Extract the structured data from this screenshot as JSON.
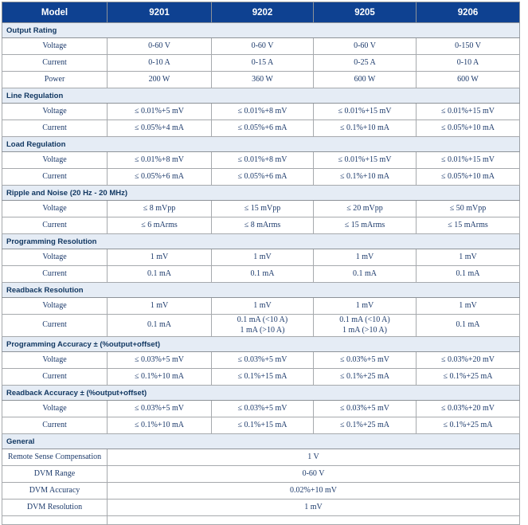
{
  "table": {
    "header": [
      "Model",
      "9201",
      "9202",
      "9205",
      "9206"
    ],
    "sections": [
      {
        "title": "Output Rating",
        "rows": [
          {
            "label": "Voltage",
            "values": [
              "0-60 V",
              "0-60 V",
              "0-60 V",
              "0-150 V"
            ]
          },
          {
            "label": "Current",
            "values": [
              "0-10 A",
              "0-15 A",
              "0-25 A",
              "0-10 A"
            ]
          },
          {
            "label": "Power",
            "values": [
              "200 W",
              "360 W",
              "600 W",
              "600 W"
            ]
          }
        ]
      },
      {
        "title": "Line Regulation",
        "rows": [
          {
            "label": "Voltage",
            "values": [
              "≤ 0.01%+5 mV",
              "≤ 0.01%+8 mV",
              "≤ 0.01%+15 mV",
              "≤ 0.01%+15 mV"
            ]
          },
          {
            "label": "Current",
            "values": [
              "≤ 0.05%+4 mA",
              "≤ 0.05%+6 mA",
              "≤ 0.1%+10 mA",
              "≤ 0.05%+10 mA"
            ]
          }
        ]
      },
      {
        "title": "Load Regulation",
        "rows": [
          {
            "label": "Voltage",
            "values": [
              "≤ 0.01%+8 mV",
              "≤ 0.01%+8 mV",
              "≤ 0.01%+15 mV",
              "≤ 0.01%+15 mV"
            ]
          },
          {
            "label": "Current",
            "values": [
              "≤ 0.05%+6 mA",
              "≤ 0.05%+6 mA",
              "≤ 0.1%+10 mA",
              "≤ 0.05%+10 mA"
            ]
          }
        ]
      },
      {
        "title": "Ripple and Noise (20 Hz - 20 MHz)",
        "rows": [
          {
            "label": "Voltage",
            "values": [
              "≤ 8 mVpp",
              "≤ 15 mVpp",
              "≤ 20 mVpp",
              "≤ 50 mVpp"
            ]
          },
          {
            "label": "Current",
            "values": [
              "≤ 6 mArms",
              "≤ 8 mArms",
              "≤ 15 mArms",
              "≤ 15 mArms"
            ]
          }
        ]
      },
      {
        "title": "Programming Resolution",
        "rows": [
          {
            "label": "Voltage",
            "values": [
              "1 mV",
              "1 mV",
              "1 mV",
              "1 mV"
            ]
          },
          {
            "label": "Current",
            "values": [
              "0.1 mA",
              "0.1 mA",
              "0.1 mA",
              "0.1 mA"
            ]
          }
        ]
      },
      {
        "title": "Readback Resolution",
        "rows": [
          {
            "label": "Voltage",
            "values": [
              "1 mV",
              "1 mV",
              "1 mV",
              "1 mV"
            ]
          },
          {
            "label": "Current",
            "values": [
              "0.1 mA",
              "0.1 mA (<10 A)\n1 mA (>10 A)",
              "0.1 mA (<10 A)\n1 mA (>10 A)",
              "0.1 mA"
            ]
          }
        ]
      },
      {
        "title": "Programming Accuracy ± (%output+offset)",
        "rows": [
          {
            "label": "Voltage",
            "values": [
              "≤ 0.03%+5 mV",
              "≤ 0.03%+5 mV",
              "≤ 0.03%+5 mV",
              "≤ 0.03%+20 mV"
            ]
          },
          {
            "label": "Current",
            "values": [
              "≤ 0.1%+10 mA",
              "≤ 0.1%+15 mA",
              "≤ 0.1%+25 mA",
              "≤ 0.1%+25 mA"
            ]
          }
        ]
      },
      {
        "title": "Readback Accuracy ± (%output+offset)",
        "rows": [
          {
            "label": "Voltage",
            "values": [
              "≤ 0.03%+5 mV",
              "≤ 0.03%+5 mV",
              "≤ 0.03%+5 mV",
              "≤ 0.03%+20 mV"
            ]
          },
          {
            "label": "Current",
            "values": [
              "≤ 0.1%+10 mA",
              "≤ 0.1%+15 mA",
              "≤ 0.1%+25 mA",
              "≤ 0.1%+25 mA"
            ]
          }
        ]
      },
      {
        "title": "General",
        "rows": [
          {
            "label": "Remote Sense Compensation",
            "span": true,
            "values": [
              "1 V"
            ]
          },
          {
            "label": "DVM Range",
            "span": true,
            "values": [
              "0-60 V"
            ]
          },
          {
            "label": "DVM Accuracy",
            "span": true,
            "values": [
              "0.02%+10 mV"
            ]
          },
          {
            "label": "DVM Resolution",
            "span": true,
            "values": [
              "1 mV"
            ]
          }
        ]
      }
    ]
  },
  "colors": {
    "header_bg": "#0e4191",
    "header_text": "#ffffff",
    "section_bg": "#e5ecf5",
    "section_text": "#123862",
    "cell_text": "#1c3a6b",
    "border": "#a6a9ad"
  }
}
